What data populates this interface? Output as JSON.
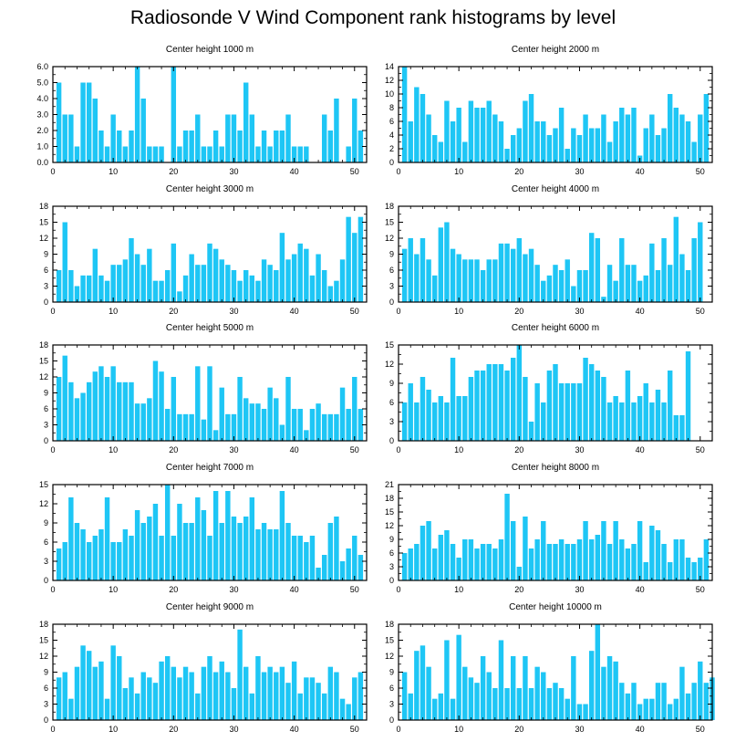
{
  "title": "Radiosonde V Wind Component rank histograms by level",
  "colors": {
    "bar": "#1ec6f5",
    "axis": "#000000"
  },
  "chart_data": [
    {
      "type": "bar",
      "title": "Center height 1000 m",
      "ylim": [
        0,
        6
      ],
      "yticks": [
        0,
        1,
        2,
        3,
        4,
        5,
        6
      ],
      "ytick_labels": [
        "0.0",
        "1.0",
        "2.0",
        "3.0",
        "4.0",
        "5.0",
        "6.0"
      ],
      "xlim": [
        0,
        52
      ],
      "xticks": [
        0,
        10,
        20,
        30,
        40,
        50
      ],
      "x_start": 1,
      "values": [
        5,
        3,
        3,
        1,
        5,
        5,
        4,
        2,
        1,
        3,
        2,
        1,
        2,
        6,
        4,
        1,
        1,
        1,
        0,
        6,
        1,
        2,
        2,
        3,
        1,
        1,
        2,
        1,
        3,
        3,
        2,
        5,
        3,
        1,
        2,
        1,
        2,
        2,
        3,
        1,
        1,
        1,
        0,
        0,
        3,
        2,
        4,
        0,
        1,
        4,
        2
      ]
    },
    {
      "type": "bar",
      "title": "Center height 2000 m",
      "ylim": [
        0,
        14
      ],
      "yticks": [
        0,
        2,
        4,
        6,
        8,
        10,
        12,
        14
      ],
      "ytick_labels": [
        "0",
        "2",
        "4",
        "6",
        "8",
        "10",
        "12",
        "14"
      ],
      "xlim": [
        0,
        52
      ],
      "xticks": [
        0,
        10,
        20,
        30,
        40,
        50
      ],
      "x_start": 1,
      "values": [
        14,
        6,
        11,
        10,
        7,
        4,
        3,
        9,
        6,
        8,
        3,
        9,
        8,
        8,
        9,
        7,
        6,
        2,
        4,
        5,
        9,
        10,
        6,
        6,
        4,
        5,
        8,
        2,
        5,
        4,
        7,
        5,
        5,
        7,
        3,
        6,
        8,
        7,
        8,
        1,
        5,
        7,
        4,
        5,
        10,
        8,
        7,
        6,
        3,
        7,
        10
      ]
    },
    {
      "type": "bar",
      "title": "Center height 3000 m",
      "ylim": [
        0,
        18
      ],
      "yticks": [
        0,
        3,
        6,
        9,
        12,
        15,
        18
      ],
      "ytick_labels": [
        "0",
        "3",
        "6",
        "9",
        "12",
        "15",
        "18"
      ],
      "xlim": [
        0,
        52
      ],
      "xticks": [
        0,
        10,
        20,
        30,
        40,
        50
      ],
      "x_start": 1,
      "values": [
        6,
        15,
        6,
        3,
        5,
        5,
        10,
        5,
        4,
        7,
        7,
        8,
        12,
        9,
        7,
        10,
        4,
        4,
        6,
        11,
        2,
        5,
        9,
        7,
        7,
        11,
        10,
        8,
        7,
        6,
        4,
        6,
        5,
        4,
        8,
        7,
        6,
        13,
        8,
        9,
        11,
        10,
        5,
        9,
        6,
        3,
        4,
        8,
        16,
        13,
        16
      ]
    },
    {
      "type": "bar",
      "title": "Center height 4000 m",
      "ylim": [
        0,
        18
      ],
      "yticks": [
        0,
        3,
        6,
        9,
        12,
        15,
        18
      ],
      "ytick_labels": [
        "0",
        "3",
        "6",
        "9",
        "12",
        "15",
        "18"
      ],
      "xlim": [
        0,
        52
      ],
      "xticks": [
        0,
        10,
        20,
        30,
        40,
        50
      ],
      "x_start": 1,
      "values": [
        10,
        12,
        9,
        12,
        8,
        5,
        14,
        15,
        10,
        9,
        8,
        8,
        8,
        6,
        8,
        8,
        11,
        11,
        10,
        12,
        9,
        10,
        7,
        4,
        5,
        7,
        6,
        8,
        3,
        6,
        6,
        13,
        12,
        1,
        7,
        4,
        12,
        7,
        7,
        4,
        5,
        11,
        6,
        12,
        7,
        16,
        9,
        6,
        12,
        15,
        0
      ]
    },
    {
      "type": "bar",
      "title": "Center height 5000 m",
      "ylim": [
        0,
        18
      ],
      "yticks": [
        0,
        3,
        6,
        9,
        12,
        15,
        18
      ],
      "ytick_labels": [
        "0",
        "3",
        "6",
        "9",
        "12",
        "15",
        "18"
      ],
      "xlim": [
        0,
        52
      ],
      "xticks": [
        0,
        10,
        20,
        30,
        40,
        50
      ],
      "x_start": 1,
      "values": [
        12,
        16,
        11,
        8,
        9,
        11,
        13,
        14,
        12,
        14,
        11,
        11,
        11,
        7,
        7,
        8,
        15,
        13,
        6,
        12,
        5,
        5,
        5,
        14,
        4,
        14,
        2,
        10,
        5,
        5,
        12,
        8,
        7,
        7,
        6,
        10,
        8,
        3,
        12,
        6,
        6,
        2,
        6,
        7,
        5,
        5,
        5,
        10,
        6,
        12,
        6
      ]
    },
    {
      "type": "bar",
      "title": "Center height 6000 m",
      "ylim": [
        0,
        15
      ],
      "yticks": [
        0,
        3,
        6,
        9,
        12,
        15
      ],
      "ytick_labels": [
        "0",
        "3",
        "6",
        "9",
        "12",
        "15"
      ],
      "xlim": [
        0,
        52
      ],
      "xticks": [
        0,
        10,
        20,
        30,
        40,
        50
      ],
      "x_start": 1,
      "values": [
        6,
        9,
        6,
        10,
        8,
        6,
        7,
        6,
        13,
        7,
        7,
        10,
        11,
        11,
        12,
        12,
        12,
        11,
        13,
        15,
        10,
        3,
        9,
        6,
        11,
        12,
        9,
        9,
        9,
        9,
        13,
        12,
        11,
        10,
        6,
        7,
        6,
        11,
        6,
        7,
        9,
        6,
        8,
        6,
        11,
        4,
        4,
        14,
        0,
        0,
        0
      ]
    },
    {
      "type": "bar",
      "title": "Center height 7000 m",
      "ylim": [
        0,
        15
      ],
      "yticks": [
        0,
        3,
        6,
        9,
        12,
        15
      ],
      "ytick_labels": [
        "0",
        "3",
        "6",
        "9",
        "12",
        "15"
      ],
      "xlim": [
        0,
        52
      ],
      "xticks": [
        0,
        10,
        20,
        30,
        40,
        50
      ],
      "x_start": 1,
      "values": [
        5,
        6,
        13,
        9,
        8,
        6,
        7,
        8,
        13,
        6,
        6,
        8,
        7,
        11,
        9,
        10,
        12,
        7,
        15,
        7,
        12,
        9,
        9,
        13,
        11,
        7,
        14,
        9,
        14,
        10,
        9,
        10,
        13,
        8,
        9,
        8,
        8,
        14,
        9,
        7,
        7,
        6,
        7,
        2,
        4,
        9,
        10,
        3,
        5,
        7,
        4
      ]
    },
    {
      "type": "bar",
      "title": "Center height 8000 m",
      "ylim": [
        0,
        21
      ],
      "yticks": [
        0,
        3,
        6,
        9,
        12,
        15,
        18,
        21
      ],
      "ytick_labels": [
        "0",
        "3",
        "6",
        "9",
        "12",
        "15",
        "18",
        "21"
      ],
      "xlim": [
        0,
        52
      ],
      "xticks": [
        0,
        10,
        20,
        30,
        40,
        50
      ],
      "x_start": 1,
      "values": [
        6,
        7,
        8,
        12,
        13,
        7,
        10,
        11,
        8,
        5,
        9,
        9,
        7,
        8,
        8,
        7,
        9,
        19,
        13,
        3,
        14,
        7,
        9,
        13,
        8,
        8,
        9,
        8,
        8,
        9,
        13,
        9,
        10,
        13,
        8,
        13,
        9,
        7,
        8,
        13,
        4,
        12,
        11,
        8,
        4,
        9,
        9,
        5,
        4,
        5,
        9
      ]
    },
    {
      "type": "bar",
      "title": "Center height 9000 m",
      "ylim": [
        0,
        18
      ],
      "yticks": [
        0,
        3,
        6,
        9,
        12,
        15,
        18
      ],
      "ytick_labels": [
        "0",
        "3",
        "6",
        "9",
        "12",
        "15",
        "18"
      ],
      "xlim": [
        0,
        52
      ],
      "xticks": [
        0,
        10,
        20,
        30,
        40,
        50
      ],
      "x_start": 1,
      "values": [
        8,
        9,
        4,
        10,
        14,
        13,
        10,
        11,
        4,
        14,
        12,
        6,
        8,
        5,
        9,
        8,
        7,
        11,
        12,
        10,
        8,
        10,
        9,
        5,
        10,
        12,
        9,
        11,
        9,
        6,
        17,
        10,
        5,
        12,
        9,
        10,
        9,
        10,
        7,
        11,
        5,
        8,
        8,
        7,
        5,
        10,
        9,
        4,
        3,
        8,
        9
      ]
    },
    {
      "type": "bar",
      "title": "Center height 10000 m",
      "ylim": [
        0,
        18
      ],
      "yticks": [
        0,
        3,
        6,
        9,
        12,
        15,
        18
      ],
      "ytick_labels": [
        "0",
        "3",
        "6",
        "9",
        "12",
        "15",
        "18"
      ],
      "xlim": [
        0,
        52
      ],
      "xticks": [
        0,
        10,
        20,
        30,
        40,
        50
      ],
      "x_start": 1,
      "values": [
        9,
        5,
        13,
        14,
        10,
        4,
        5,
        15,
        4,
        16,
        10,
        8,
        7,
        12,
        9,
        6,
        15,
        6,
        12,
        6,
        12,
        6,
        10,
        9,
        6,
        7,
        6,
        4,
        12,
        3,
        3,
        13,
        18,
        10,
        12,
        11,
        7,
        5,
        7,
        3,
        4,
        4,
        7,
        7,
        3,
        4,
        10,
        5,
        7,
        11,
        7,
        8
      ]
    }
  ]
}
